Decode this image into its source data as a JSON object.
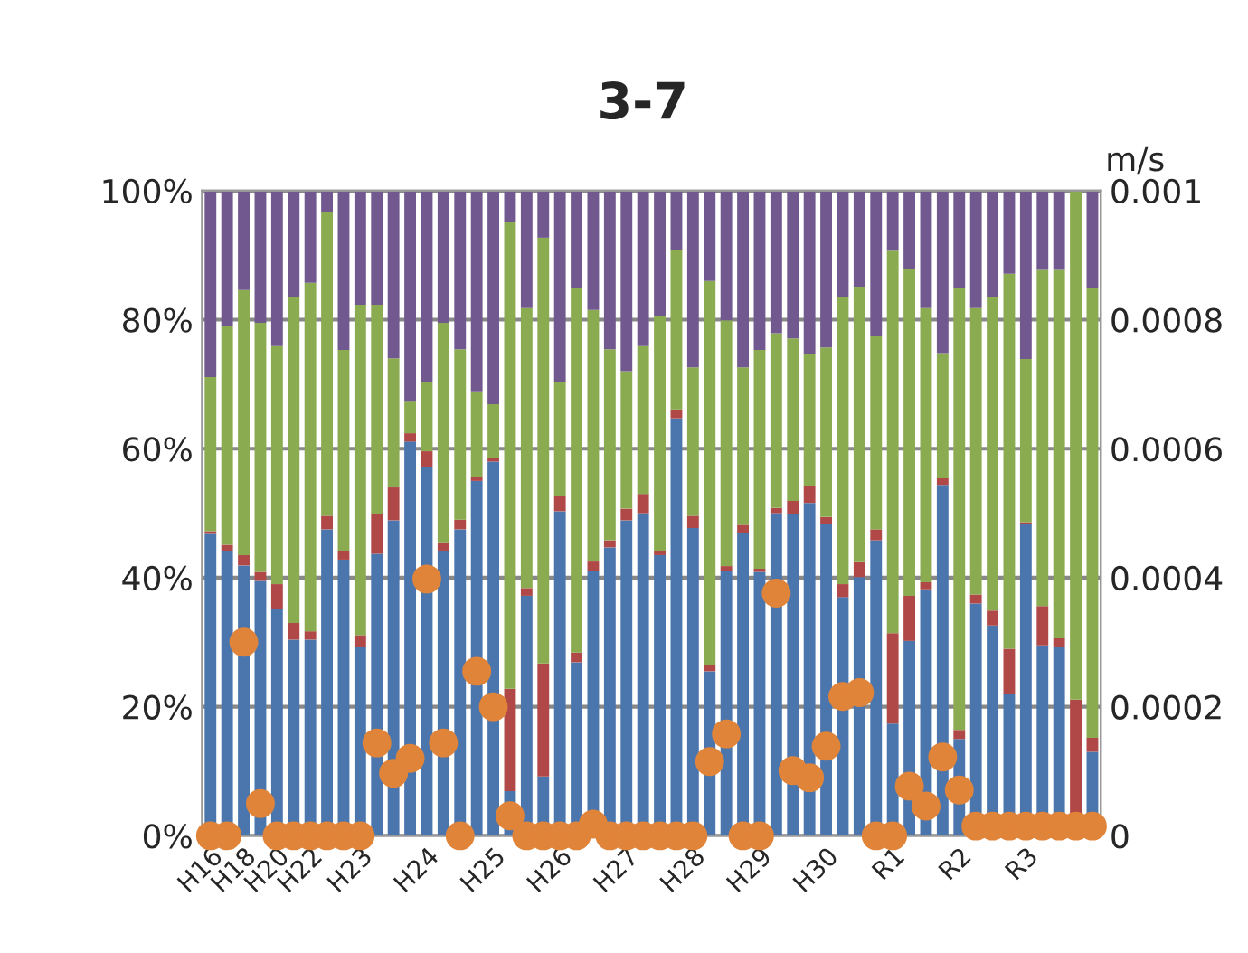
{
  "chart_data": {
    "type": "bar",
    "title": "3-7",
    "y2label": "m/s",
    "stacked": true,
    "grid": "y",
    "marker": "circle",
    "categories": [
      "H16",
      null,
      "H18",
      null,
      "H20",
      null,
      "H22",
      null,
      null,
      "H23",
      null,
      null,
      null,
      "H24",
      null,
      null,
      null,
      "H25",
      null,
      null,
      null,
      "H26",
      null,
      null,
      null,
      "H27",
      null,
      null,
      null,
      "H28",
      null,
      null,
      null,
      "H29",
      null,
      null,
      null,
      "H30",
      null,
      null,
      null,
      "R1",
      null,
      null,
      null,
      "R2",
      null,
      null,
      null,
      "R3",
      null,
      null,
      null,
      null
    ],
    "ylim": [
      0,
      100
    ],
    "yticks": [
      {
        "value": 0,
        "label": "0%"
      },
      {
        "value": 20,
        "label": "20%"
      },
      {
        "value": 40,
        "label": "40%"
      },
      {
        "value": 60,
        "label": "60%"
      },
      {
        "value": 80,
        "label": "80%"
      },
      {
        "value": 100,
        "label": "100%"
      }
    ],
    "y2lim": [
      0,
      0.001
    ],
    "y2ticks": [
      0,
      0.0002,
      0.0004,
      0.0006,
      0.0008,
      0.001
    ],
    "series": [
      {
        "color": "#4a76ad",
        "values": [
          46.8,
          44.2,
          41.9,
          39.5,
          35.1,
          30.4,
          30.4,
          47.5,
          42.8,
          29.2,
          43.7,
          48.9,
          61.1,
          57.1,
          44.2,
          47.5,
          55.0,
          58.0,
          6.9,
          37.2,
          9.2,
          50.3,
          26.9,
          41.0,
          44.7,
          48.9,
          50.0,
          43.5,
          64.7,
          47.7,
          25.5,
          41.0,
          47.0,
          40.9,
          50.0,
          49.9,
          51.6,
          48.4,
          37.0,
          40.1,
          45.8,
          17.4,
          30.2,
          38.2,
          54.4,
          15.0,
          36.0,
          32.6,
          22.0,
          48.4,
          29.5,
          29.2,
          0,
          13.0
        ]
      },
      {
        "color": "#b04848",
        "values": [
          0.4,
          0.9,
          1.6,
          1.4,
          3.9,
          2.6,
          1.3,
          2.1,
          1.4,
          1.9,
          6.1,
          5.1,
          1.3,
          2.5,
          1.3,
          1.5,
          0.6,
          0.6,
          15.9,
          1.2,
          17.5,
          2.3,
          1.5,
          1.5,
          1.1,
          1.8,
          3.0,
          0.7,
          1.4,
          1.9,
          0.9,
          0.8,
          1.2,
          0.5,
          0.8,
          2.0,
          2.6,
          1.0,
          2.0,
          2.3,
          1.7,
          14.0,
          7.0,
          1.1,
          1.0,
          1.4,
          1.4,
          2.3,
          7.0,
          0.2,
          6.1,
          1.4,
          21.1,
          2.2
        ]
      },
      {
        "color": "#8bab50",
        "values": [
          23.9,
          33.9,
          41.1,
          38.6,
          36.9,
          50.5,
          54.0,
          47.1,
          31.1,
          51.2,
          32.5,
          20.0,
          4.9,
          10.7,
          34.0,
          26.4,
          13.3,
          8.3,
          72.3,
          43.4,
          66.0,
          17.7,
          56.5,
          39.0,
          29.6,
          21.3,
          22.9,
          36.4,
          24.7,
          23.0,
          59.6,
          38.1,
          24.4,
          33.9,
          27.1,
          25.2,
          20.4,
          26.3,
          44.5,
          42.7,
          29.9,
          59.3,
          50.7,
          42.5,
          19.4,
          68.5,
          44.4,
          48.6,
          58.1,
          25.3,
          52.1,
          57.1,
          78.9,
          69.7
        ]
      },
      {
        "color": "#71598f",
        "values": [
          28.9,
          21.0,
          15.4,
          20.5,
          24.1,
          16.5,
          14.3,
          3.3,
          24.7,
          17.7,
          17.7,
          26.0,
          32.7,
          29.7,
          20.5,
          24.6,
          31.1,
          33.1,
          4.9,
          18.2,
          7.3,
          29.7,
          15.1,
          18.5,
          24.6,
          28.0,
          24.1,
          19.4,
          9.2,
          27.4,
          14.0,
          20.1,
          27.4,
          24.7,
          22.1,
          22.9,
          25.4,
          24.3,
          16.5,
          14.9,
          22.6,
          9.3,
          12.1,
          18.2,
          25.2,
          15.1,
          18.2,
          16.5,
          12.9,
          26.1,
          12.3,
          12.3,
          0,
          15.1
        ]
      },
      {
        "type": "scatter",
        "axis": "y2",
        "color": "#e0843a",
        "values": [
          0,
          0,
          0.0003,
          5e-05,
          0,
          0,
          0,
          0,
          0,
          0,
          0.000144,
          9.7e-05,
          0.00012,
          0.000398,
          0.000144,
          0,
          0.000255,
          0.0002,
          3.1e-05,
          0,
          0,
          0,
          0,
          1.8e-05,
          0,
          0,
          0,
          0,
          0,
          0,
          0.000115,
          0.000158,
          0,
          0,
          0.000376,
          0.000101,
          9e-05,
          0.000139,
          0.000216,
          0.000222,
          0,
          0,
          7.7e-05,
          4.6e-05,
          0.000122,
          7.1e-05,
          1.5e-05,
          1.5e-05,
          1.5e-05,
          1.5e-05,
          1.5e-05,
          1.5e-05,
          1.5e-05,
          1.5e-05
        ]
      }
    ]
  }
}
